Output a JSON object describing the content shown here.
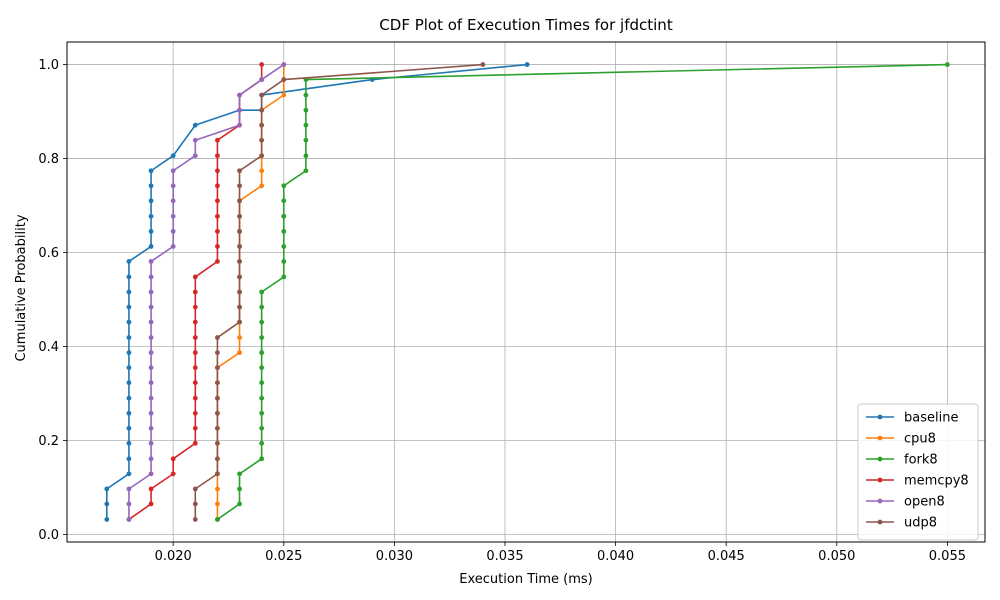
{
  "chart_data": {
    "type": "line",
    "title": "CDF Plot of Execution Times for jfdctint",
    "xlabel": "Execution Time (ms)",
    "ylabel": "Cumulative Probability",
    "xlim": [
      0.0152,
      0.0567
    ],
    "ylim": [
      -0.016,
      1.048
    ],
    "xticks": [
      "0.020",
      "0.025",
      "0.030",
      "0.035",
      "0.040",
      "0.045",
      "0.050",
      "0.055"
    ],
    "yticks": [
      "0.0",
      "0.2",
      "0.4",
      "0.6",
      "0.8",
      "1.0"
    ],
    "grid": true,
    "legend_position": "bottom-right",
    "series": [
      {
        "name": "baseline",
        "color": "#1f77b4",
        "x": [
          0.017,
          0.017,
          0.017,
          0.018,
          0.018,
          0.018,
          0.018,
          0.018,
          0.018,
          0.018,
          0.018,
          0.018,
          0.018,
          0.018,
          0.018,
          0.018,
          0.018,
          0.018,
          0.019,
          0.019,
          0.019,
          0.019,
          0.019,
          0.019,
          0.02,
          0.021,
          0.023,
          0.024,
          0.024,
          0.029,
          0.036
        ],
        "y": [
          0.032,
          0.065,
          0.097,
          0.129,
          0.161,
          0.194,
          0.226,
          0.258,
          0.29,
          0.323,
          0.355,
          0.387,
          0.419,
          0.452,
          0.484,
          0.516,
          0.548,
          0.581,
          0.613,
          0.645,
          0.677,
          0.71,
          0.742,
          0.774,
          0.806,
          0.871,
          0.903,
          0.903,
          0.935,
          0.968,
          1.0
        ]
      },
      {
        "name": "cpu8",
        "color": "#ff7f0e",
        "x": [
          0.022,
          0.022,
          0.022,
          0.022,
          0.022,
          0.022,
          0.022,
          0.022,
          0.022,
          0.022,
          0.022,
          0.023,
          0.023,
          0.023,
          0.023,
          0.023,
          0.023,
          0.023,
          0.023,
          0.023,
          0.023,
          0.023,
          0.024,
          0.024,
          0.024,
          0.024,
          0.024,
          0.024,
          0.025,
          0.025,
          0.025
        ],
        "y": [
          0.032,
          0.065,
          0.097,
          0.129,
          0.161,
          0.194,
          0.226,
          0.258,
          0.29,
          0.323,
          0.355,
          0.387,
          0.419,
          0.452,
          0.484,
          0.516,
          0.548,
          0.581,
          0.613,
          0.645,
          0.677,
          0.71,
          0.742,
          0.774,
          0.806,
          0.839,
          0.871,
          0.903,
          0.935,
          0.968,
          1.0
        ]
      },
      {
        "name": "fork8",
        "color": "#2ca02c",
        "x": [
          0.022,
          0.023,
          0.023,
          0.023,
          0.024,
          0.024,
          0.024,
          0.024,
          0.024,
          0.024,
          0.024,
          0.024,
          0.024,
          0.024,
          0.024,
          0.024,
          0.025,
          0.025,
          0.025,
          0.025,
          0.025,
          0.025,
          0.025,
          0.026,
          0.026,
          0.026,
          0.026,
          0.026,
          0.026,
          0.026,
          0.055
        ],
        "y": [
          0.032,
          0.065,
          0.097,
          0.129,
          0.161,
          0.194,
          0.226,
          0.258,
          0.29,
          0.323,
          0.355,
          0.387,
          0.419,
          0.452,
          0.484,
          0.516,
          0.548,
          0.581,
          0.613,
          0.645,
          0.677,
          0.71,
          0.742,
          0.774,
          0.806,
          0.839,
          0.871,
          0.903,
          0.935,
          0.968,
          1.0
        ]
      },
      {
        "name": "memcpy8",
        "color": "#d62728",
        "x": [
          0.018,
          0.019,
          0.019,
          0.02,
          0.02,
          0.021,
          0.021,
          0.021,
          0.021,
          0.021,
          0.021,
          0.021,
          0.021,
          0.021,
          0.021,
          0.021,
          0.021,
          0.022,
          0.022,
          0.022,
          0.022,
          0.022,
          0.022,
          0.022,
          0.022,
          0.022,
          0.023,
          0.023,
          0.023,
          0.024,
          0.024
        ],
        "y": [
          0.032,
          0.065,
          0.097,
          0.129,
          0.161,
          0.194,
          0.226,
          0.258,
          0.29,
          0.323,
          0.355,
          0.387,
          0.419,
          0.452,
          0.484,
          0.516,
          0.548,
          0.581,
          0.613,
          0.645,
          0.677,
          0.71,
          0.742,
          0.774,
          0.806,
          0.839,
          0.871,
          0.903,
          0.935,
          0.968,
          1.0
        ]
      },
      {
        "name": "open8",
        "color": "#9467bd",
        "x": [
          0.018,
          0.018,
          0.018,
          0.019,
          0.019,
          0.019,
          0.019,
          0.019,
          0.019,
          0.019,
          0.019,
          0.019,
          0.019,
          0.019,
          0.019,
          0.019,
          0.019,
          0.019,
          0.02,
          0.02,
          0.02,
          0.02,
          0.02,
          0.02,
          0.021,
          0.021,
          0.023,
          0.023,
          0.023,
          0.024,
          0.025
        ],
        "y": [
          0.032,
          0.065,
          0.097,
          0.129,
          0.161,
          0.194,
          0.226,
          0.258,
          0.29,
          0.323,
          0.355,
          0.387,
          0.419,
          0.452,
          0.484,
          0.516,
          0.548,
          0.581,
          0.613,
          0.645,
          0.677,
          0.71,
          0.742,
          0.774,
          0.806,
          0.839,
          0.871,
          0.903,
          0.935,
          0.968,
          1.0
        ]
      },
      {
        "name": "udp8",
        "color": "#8c564b",
        "x": [
          0.021,
          0.021,
          0.021,
          0.022,
          0.022,
          0.022,
          0.022,
          0.022,
          0.022,
          0.022,
          0.022,
          0.022,
          0.022,
          0.023,
          0.023,
          0.023,
          0.023,
          0.023,
          0.023,
          0.023,
          0.023,
          0.023,
          0.023,
          0.023,
          0.024,
          0.024,
          0.024,
          0.024,
          0.024,
          0.025,
          0.034
        ],
        "y": [
          0.032,
          0.065,
          0.097,
          0.129,
          0.161,
          0.194,
          0.226,
          0.258,
          0.29,
          0.323,
          0.355,
          0.387,
          0.419,
          0.452,
          0.484,
          0.516,
          0.548,
          0.581,
          0.613,
          0.645,
          0.677,
          0.71,
          0.742,
          0.774,
          0.806,
          0.839,
          0.871,
          0.903,
          0.935,
          0.968,
          1.0
        ]
      }
    ]
  }
}
